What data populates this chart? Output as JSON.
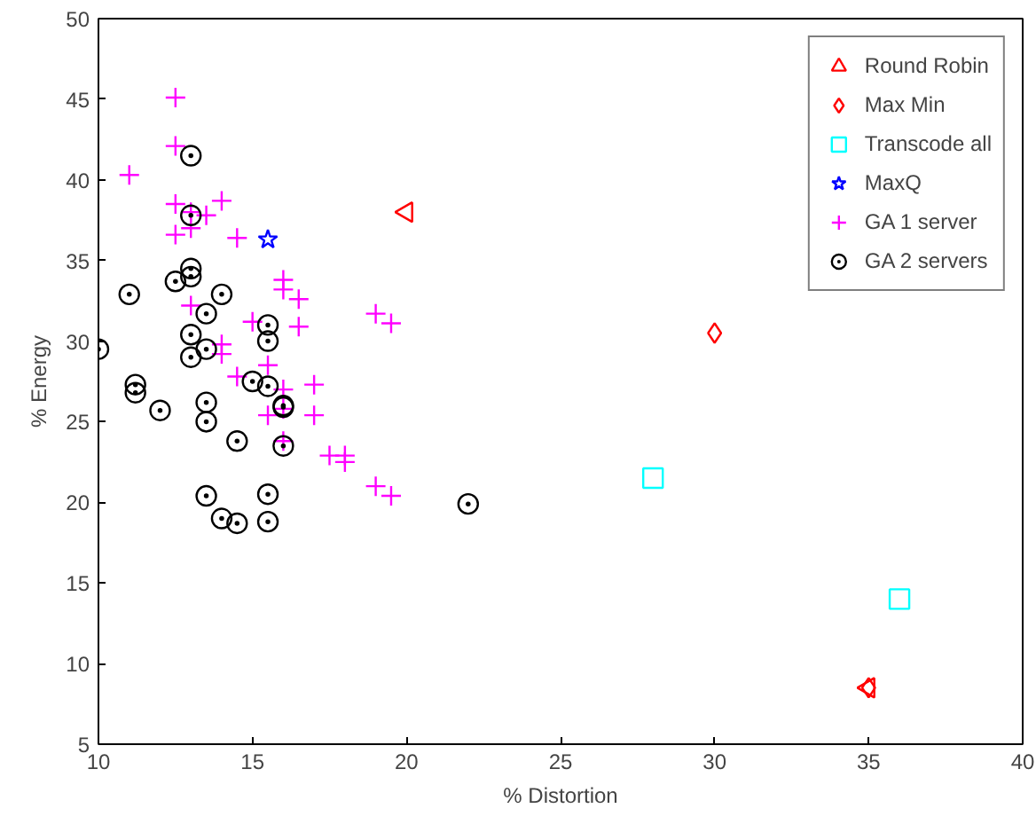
{
  "chart_data": {
    "type": "scatter",
    "xlabel": "% Distortion",
    "ylabel": "% Energy",
    "xlim": [
      10,
      40
    ],
    "ylim": [
      5,
      50
    ],
    "xticks": [
      10,
      15,
      20,
      25,
      30,
      35,
      40
    ],
    "yticks": [
      5,
      10,
      15,
      20,
      25,
      30,
      35,
      40,
      45,
      50
    ],
    "grid": false,
    "legend": "top right",
    "series": [
      {
        "name": "Round Robin",
        "color": "#ff0000",
        "marker": "triangle",
        "x": [
          20,
          35
        ],
        "values": [
          38,
          8.5
        ]
      },
      {
        "name": "Max Min",
        "color": "#ff0000",
        "marker": "diamond",
        "x": [
          30,
          35
        ],
        "values": [
          30.5,
          8.5
        ]
      },
      {
        "name": "Transcode all",
        "color": "#00ffff",
        "marker": "square",
        "x": [
          28,
          36
        ],
        "values": [
          21.5,
          14
        ]
      },
      {
        "name": "MaxQ",
        "color": "#0000ff",
        "marker": "star",
        "x": [
          15.5
        ],
        "values": [
          36.3
        ]
      },
      {
        "name": "GA 1 server",
        "color": "#ff00ff",
        "marker": "cross",
        "x": [
          12.5,
          12.5,
          11,
          12.5,
          13,
          13.5,
          14,
          12.5,
          13,
          14.5,
          13,
          16,
          16,
          16.5,
          19,
          19.5,
          15,
          16.5,
          14,
          14,
          14.5,
          15.5,
          17,
          16,
          15.5,
          16,
          17,
          17.5,
          18,
          18,
          19,
          19.5,
          16
        ],
        "values": [
          45.1,
          42.1,
          40.3,
          38.5,
          38,
          37.8,
          38.7,
          36.6,
          37,
          36.4,
          32.2,
          33.8,
          33.2,
          32.6,
          31.7,
          31.1,
          31.2,
          30.9,
          29.8,
          29.2,
          27.8,
          28.5,
          27.3,
          27,
          25.4,
          25.8,
          25.4,
          22.9,
          22.9,
          22.5,
          21,
          20.4,
          23.8
        ]
      },
      {
        "name": "GA 2 servers",
        "color": "#000000",
        "marker": "circle",
        "x": [
          13,
          13,
          13,
          13,
          12.5,
          11,
          14,
          13.5,
          15.5,
          15.5,
          13,
          13,
          13.5,
          10,
          11.2,
          11.2,
          12,
          13.5,
          13.5,
          15,
          15.5,
          16,
          16,
          14.5,
          16,
          13.5,
          15.5,
          14,
          14.5,
          15.5,
          22
        ],
        "values": [
          41.5,
          37.8,
          34.5,
          34,
          33.7,
          32.9,
          32.9,
          31.7,
          31,
          30,
          30.4,
          29,
          29.5,
          29.5,
          27.3,
          26.8,
          25.7,
          26.2,
          25,
          27.5,
          27.2,
          26,
          25.9,
          23.8,
          23.5,
          20.4,
          20.5,
          19,
          18.7,
          18.8,
          19.9
        ]
      }
    ]
  }
}
